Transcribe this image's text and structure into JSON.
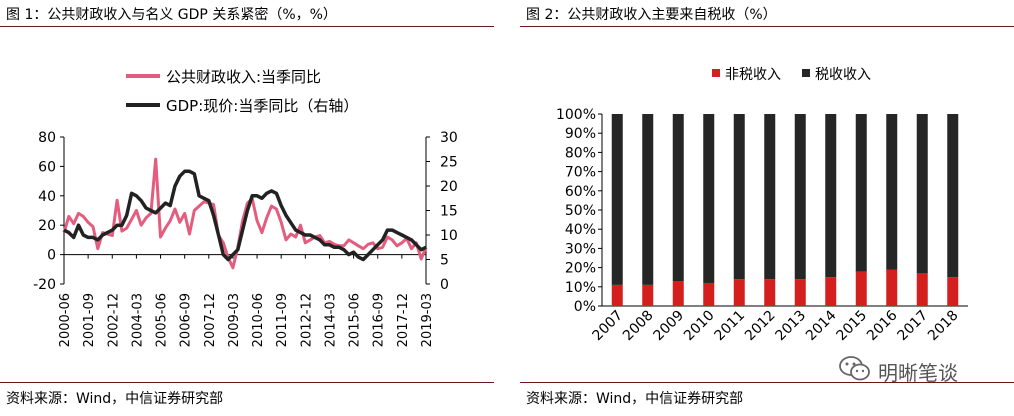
{
  "fig1": {
    "title": "图 1：公共财政收入与名义 GDP 关系紧密（%，%）",
    "source": "资料来源：Wind，中信证券研究部"
  },
  "fig2": {
    "title": "图 2：公共财政收入主要来自税收（%）",
    "source": "资料来源：Wind，中信证券研究部"
  },
  "watermark": {
    "text": "明晰笔谈",
    "icon": "wechat-icon"
  },
  "colors": {
    "pink": "#e45c7e",
    "black": "#222222",
    "red": "#d41f1f",
    "dark": "#262626",
    "rule": "#6b1a1a"
  },
  "chart_data": [
    {
      "type": "line",
      "grid": false,
      "legend_position": "top-left",
      "x_ticks": [
        "2000-06",
        "2001-09",
        "2002-12",
        "2004-03",
        "2005-06",
        "2006-09",
        "2007-12",
        "2009-03",
        "2010-06",
        "2011-09",
        "2012-12",
        "2014-03",
        "2015-06",
        "2016-09",
        "2017-12",
        "2019-03"
      ],
      "x_range": [
        2000.375,
        2019.125
      ],
      "ylim_left": [
        -20,
        80
      ],
      "yticks_left": [
        "-20",
        "0",
        "20",
        "40",
        "60",
        "80"
      ],
      "ylim_right": [
        0,
        30
      ],
      "yticks_right": [
        "0",
        "5",
        "10",
        "15",
        "20",
        "25",
        "30"
      ],
      "series": [
        {
          "name": "公共财政收入:当季同比",
          "axis": "left",
          "color": "#e45c7e",
          "x": [
            2000.375,
            2000.625,
            2000.875,
            2001.125,
            2001.375,
            2001.625,
            2001.875,
            2002.125,
            2002.375,
            2002.625,
            2002.875,
            2003.125,
            2003.375,
            2003.625,
            2003.875,
            2004.125,
            2004.375,
            2004.625,
            2004.875,
            2005.125,
            2005.375,
            2005.625,
            2005.875,
            2006.125,
            2006.375,
            2006.625,
            2006.875,
            2007.125,
            2007.375,
            2007.625,
            2007.875,
            2008.125,
            2008.375,
            2008.625,
            2008.875,
            2009.125,
            2009.375,
            2009.625,
            2009.875,
            2010.125,
            2010.375,
            2010.625,
            2010.875,
            2011.125,
            2011.375,
            2011.625,
            2011.875,
            2012.125,
            2012.375,
            2012.625,
            2012.875,
            2013.125,
            2013.375,
            2013.625,
            2013.875,
            2014.125,
            2014.375,
            2014.625,
            2014.875,
            2015.125,
            2015.375,
            2015.625,
            2015.875,
            2016.125,
            2016.375,
            2016.625,
            2016.875,
            2017.125,
            2017.375,
            2017.625,
            2017.875,
            2018.125,
            2018.375,
            2018.625,
            2018.875,
            2019.125
          ],
          "values": [
            15,
            26,
            21,
            28,
            26,
            22,
            19,
            4,
            15,
            14,
            13,
            37,
            16,
            18,
            24,
            30,
            20,
            25,
            28,
            65,
            12,
            18,
            23,
            31,
            22,
            28,
            14,
            30,
            33,
            36,
            35,
            34,
            13,
            8,
            -2,
            -9,
            5,
            23,
            35,
            38,
            23,
            15,
            25,
            33,
            31,
            22,
            10,
            14,
            12,
            20,
            8,
            10,
            12,
            13,
            8,
            9,
            7,
            6,
            6,
            10,
            8,
            6,
            4,
            7,
            8,
            4,
            5,
            12,
            10,
            6,
            8,
            11,
            4,
            8,
            -3,
            5
          ]
        },
        {
          "name": "GDP:现价:当季同比（右轴）",
          "axis": "right",
          "color": "#222222",
          "x": [
            2000.375,
            2000.625,
            2000.875,
            2001.125,
            2001.375,
            2001.625,
            2001.875,
            2002.125,
            2002.375,
            2002.625,
            2002.875,
            2003.125,
            2003.375,
            2003.625,
            2003.875,
            2004.125,
            2004.375,
            2004.625,
            2004.875,
            2005.125,
            2005.375,
            2005.625,
            2005.875,
            2006.125,
            2006.375,
            2006.625,
            2006.875,
            2007.125,
            2007.375,
            2007.625,
            2007.875,
            2008.125,
            2008.375,
            2008.625,
            2008.875,
            2009.125,
            2009.375,
            2009.625,
            2009.875,
            2010.125,
            2010.375,
            2010.625,
            2010.875,
            2011.125,
            2011.375,
            2011.625,
            2011.875,
            2012.125,
            2012.375,
            2012.625,
            2012.875,
            2013.125,
            2013.375,
            2013.625,
            2013.875,
            2014.125,
            2014.375,
            2014.625,
            2014.875,
            2015.125,
            2015.375,
            2015.625,
            2015.875,
            2016.125,
            2016.375,
            2016.625,
            2016.875,
            2017.125,
            2017.375,
            2017.625,
            2017.875,
            2018.125,
            2018.375,
            2018.625,
            2018.875,
            2019.125
          ],
          "values": [
            11,
            10.5,
            9.5,
            12,
            10,
            9.5,
            9.5,
            9,
            10,
            10.5,
            11,
            12,
            12,
            14,
            18.5,
            18,
            17,
            15.5,
            15,
            14.5,
            15.5,
            16.5,
            16,
            20,
            22,
            23,
            23,
            22.5,
            18,
            17.5,
            17,
            14,
            10,
            6,
            5,
            6,
            7,
            11,
            15,
            18,
            18,
            17.5,
            18.5,
            19,
            18.5,
            16,
            14,
            12.5,
            11,
            10.5,
            10,
            10,
            9.5,
            9,
            8,
            8,
            7.5,
            7.5,
            7,
            6,
            6.5,
            5.5,
            5,
            6,
            7,
            8,
            9,
            11,
            11,
            10.5,
            10,
            9.5,
            9,
            8,
            7,
            7.5
          ]
        }
      ]
    },
    {
      "type": "bar",
      "stacked": true,
      "grid": false,
      "legend_position": "top-center",
      "categories": [
        "2007",
        "2008",
        "2009",
        "2010",
        "2011",
        "2012",
        "2013",
        "2014",
        "2015",
        "2016",
        "2017",
        "2018"
      ],
      "ylim": [
        0,
        100
      ],
      "yticks": [
        "0%",
        "10%",
        "20%",
        "30%",
        "40%",
        "50%",
        "60%",
        "70%",
        "80%",
        "90%",
        "100%"
      ],
      "series": [
        {
          "name": "非税收入",
          "color": "#d41f1f",
          "values": [
            11,
            11,
            13,
            12,
            14,
            14,
            14,
            15,
            18,
            19,
            17,
            15
          ]
        },
        {
          "name": "税收收入",
          "color": "#262626",
          "values": [
            89,
            89,
            87,
            88,
            86,
            86,
            86,
            85,
            82,
            81,
            83,
            85
          ]
        }
      ]
    }
  ]
}
